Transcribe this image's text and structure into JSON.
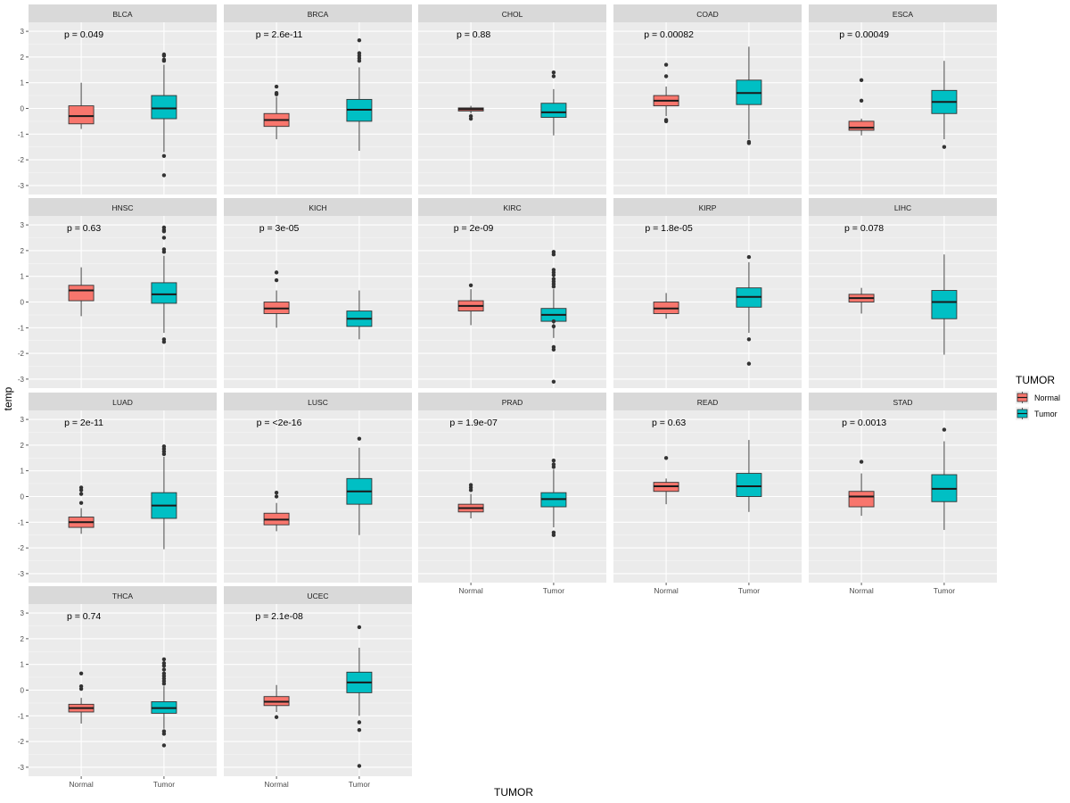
{
  "chart_data": {
    "type": "boxplot",
    "title": "",
    "xlabel": "TUMOR",
    "ylabel": "temp",
    "ylim": [
      -3.35,
      3.35
    ],
    "yticks": [
      -3,
      -2,
      -1,
      0,
      1,
      2,
      3
    ],
    "categories": [
      "Normal",
      "Tumor"
    ],
    "legend": {
      "title": "TUMOR",
      "position": "right",
      "items": [
        {
          "label": "Normal",
          "color": "#F8766D"
        },
        {
          "label": "Tumor",
          "color": "#00BFC4"
        }
      ]
    },
    "colors": {
      "Normal": "#F8766D",
      "Tumor": "#00BFC4",
      "panel": "#EBEBEB",
      "strip": "#D9D9D9"
    },
    "panels": [
      {
        "name": "BLCA",
        "p_label": "p = 0.049",
        "boxes": [
          {
            "group": "Normal",
            "q1": -0.6,
            "median": -0.3,
            "q3": 0.1,
            "whisker_low": -0.8,
            "whisker_high": 1.0,
            "outliers": []
          },
          {
            "group": "Tumor",
            "q1": -0.4,
            "median": 0.0,
            "q3": 0.5,
            "whisker_low": -1.7,
            "whisker_high": 1.7,
            "outliers": [
              1.85,
              1.9,
              2.05,
              2.1,
              -1.85,
              -2.6
            ]
          }
        ]
      },
      {
        "name": "BRCA",
        "p_label": "p = 2.6e-11",
        "boxes": [
          {
            "group": "Normal",
            "q1": -0.7,
            "median": -0.45,
            "q3": -0.2,
            "whisker_low": -1.2,
            "whisker_high": 0.45,
            "outliers": [
              0.55,
              0.6,
              0.85
            ]
          },
          {
            "group": "Tumor",
            "q1": -0.5,
            "median": -0.05,
            "q3": 0.35,
            "whisker_low": -1.65,
            "whisker_high": 1.6,
            "outliers": [
              1.85,
              1.95,
              2.05,
              2.15,
              2.65
            ]
          }
        ]
      },
      {
        "name": "CHOL",
        "p_label": "p = 0.88",
        "boxes": [
          {
            "group": "Normal",
            "q1": -0.1,
            "median": -0.03,
            "q3": 0.02,
            "whisker_low": -0.2,
            "whisker_high": 0.1,
            "outliers": [
              -0.3,
              -0.4
            ]
          },
          {
            "group": "Tumor",
            "q1": -0.35,
            "median": -0.15,
            "q3": 0.2,
            "whisker_low": -1.05,
            "whisker_high": 0.75,
            "outliers": [
              1.25,
              1.4
            ]
          }
        ]
      },
      {
        "name": "COAD",
        "p_label": "p = 0.00082",
        "boxes": [
          {
            "group": "Normal",
            "q1": 0.1,
            "median": 0.3,
            "q3": 0.5,
            "whisker_low": -0.3,
            "whisker_high": 0.85,
            "outliers": [
              1.25,
              1.7,
              -0.45,
              -0.5
            ]
          },
          {
            "group": "Tumor",
            "q1": 0.15,
            "median": 0.6,
            "q3": 1.1,
            "whisker_low": -1.2,
            "whisker_high": 2.4,
            "outliers": [
              -1.3,
              -1.35
            ]
          }
        ]
      },
      {
        "name": "ESCA",
        "p_label": "p = 0.00049",
        "boxes": [
          {
            "group": "Normal",
            "q1": -0.85,
            "median": -0.75,
            "q3": -0.5,
            "whisker_low": -1.05,
            "whisker_high": -0.4,
            "outliers": [
              0.3,
              1.1
            ]
          },
          {
            "group": "Tumor",
            "q1": -0.2,
            "median": 0.25,
            "q3": 0.7,
            "whisker_low": -1.2,
            "whisker_high": 1.85,
            "outliers": [
              -1.5
            ]
          }
        ]
      },
      {
        "name": "HNSC",
        "p_label": "p = 0.63",
        "boxes": [
          {
            "group": "Normal",
            "q1": 0.05,
            "median": 0.45,
            "q3": 0.65,
            "whisker_low": -0.55,
            "whisker_high": 1.35,
            "outliers": []
          },
          {
            "group": "Tumor",
            "q1": -0.05,
            "median": 0.3,
            "q3": 0.75,
            "whisker_low": -1.2,
            "whisker_high": 1.8,
            "outliers": [
              1.95,
              2.05,
              2.5,
              2.75,
              2.8,
              2.9,
              -1.45,
              -1.55
            ]
          }
        ]
      },
      {
        "name": "KICH",
        "p_label": "p = 3e-05",
        "boxes": [
          {
            "group": "Normal",
            "q1": -0.45,
            "median": -0.25,
            "q3": 0.0,
            "whisker_low": -1.0,
            "whisker_high": 0.45,
            "outliers": [
              0.85,
              1.15
            ]
          },
          {
            "group": "Tumor",
            "q1": -0.95,
            "median": -0.65,
            "q3": -0.35,
            "whisker_low": -1.45,
            "whisker_high": 0.45,
            "outliers": []
          }
        ]
      },
      {
        "name": "KIRC",
        "p_label": "p = 2e-09",
        "boxes": [
          {
            "group": "Normal",
            "q1": -0.35,
            "median": -0.15,
            "q3": 0.05,
            "whisker_low": -0.9,
            "whisker_high": 0.5,
            "outliers": [
              0.65
            ]
          },
          {
            "group": "Tumor",
            "q1": -0.75,
            "median": -0.5,
            "q3": -0.25,
            "whisker_low": -1.4,
            "whisker_high": 0.5,
            "outliers": [
              0.6,
              0.7,
              0.8,
              0.9,
              1.05,
              1.15,
              1.25,
              1.85,
              1.95,
              -0.75,
              -0.95,
              -1.75,
              -1.85,
              -3.1
            ]
          }
        ]
      },
      {
        "name": "KIRP",
        "p_label": "p = 1.8e-05",
        "boxes": [
          {
            "group": "Normal",
            "q1": -0.45,
            "median": -0.25,
            "q3": 0.0,
            "whisker_low": -0.65,
            "whisker_high": 0.35,
            "outliers": []
          },
          {
            "group": "Tumor",
            "q1": -0.2,
            "median": 0.2,
            "q3": 0.55,
            "whisker_low": -1.2,
            "whisker_high": 1.55,
            "outliers": [
              1.75,
              -1.45,
              -2.4
            ]
          }
        ]
      },
      {
        "name": "LIHC",
        "p_label": "p = 0.078",
        "boxes": [
          {
            "group": "Normal",
            "q1": 0.0,
            "median": 0.15,
            "q3": 0.3,
            "whisker_low": -0.45,
            "whisker_high": 0.55,
            "outliers": []
          },
          {
            "group": "Tumor",
            "q1": -0.65,
            "median": 0.0,
            "q3": 0.45,
            "whisker_low": -2.05,
            "whisker_high": 1.85,
            "outliers": []
          }
        ]
      },
      {
        "name": "LUAD",
        "p_label": "p = 2e-11",
        "boxes": [
          {
            "group": "Normal",
            "q1": -1.2,
            "median": -1.0,
            "q3": -0.8,
            "whisker_low": -1.45,
            "whisker_high": -0.45,
            "outliers": [
              -0.25,
              0.1,
              0.25,
              0.35
            ]
          },
          {
            "group": "Tumor",
            "q1": -0.85,
            "median": -0.35,
            "q3": 0.15,
            "whisker_low": -2.05,
            "whisker_high": 1.55,
            "outliers": [
              1.65,
              1.75,
              1.85,
              1.95
            ]
          }
        ]
      },
      {
        "name": "LUSC",
        "p_label": "p = <2e-16",
        "boxes": [
          {
            "group": "Normal",
            "q1": -1.1,
            "median": -0.9,
            "q3": -0.65,
            "whisker_low": -1.35,
            "whisker_high": -0.25,
            "outliers": [
              0.0,
              0.15
            ]
          },
          {
            "group": "Tumor",
            "q1": -0.3,
            "median": 0.2,
            "q3": 0.7,
            "whisker_low": -1.5,
            "whisker_high": 1.9,
            "outliers": [
              2.25
            ]
          }
        ]
      },
      {
        "name": "PRAD",
        "p_label": "p = 1.9e-07",
        "boxes": [
          {
            "group": "Normal",
            "q1": -0.6,
            "median": -0.45,
            "q3": -0.3,
            "whisker_low": -0.85,
            "whisker_high": 0.1,
            "outliers": [
              0.25,
              0.35,
              0.45
            ]
          },
          {
            "group": "Tumor",
            "q1": -0.4,
            "median": -0.1,
            "q3": 0.15,
            "whisker_low": -1.2,
            "whisker_high": 1.05,
            "outliers": [
              1.15,
              1.25,
              1.4,
              -1.4,
              -1.5
            ]
          }
        ]
      },
      {
        "name": "READ",
        "p_label": "p = 0.63",
        "boxes": [
          {
            "group": "Normal",
            "q1": 0.2,
            "median": 0.4,
            "q3": 0.55,
            "whisker_low": -0.3,
            "whisker_high": 0.7,
            "outliers": [
              1.5
            ]
          },
          {
            "group": "Tumor",
            "q1": 0.0,
            "median": 0.4,
            "q3": 0.9,
            "whisker_low": -0.6,
            "whisker_high": 2.2,
            "outliers": []
          }
        ]
      },
      {
        "name": "STAD",
        "p_label": "p = 0.0013",
        "boxes": [
          {
            "group": "Normal",
            "q1": -0.4,
            "median": 0.0,
            "q3": 0.2,
            "whisker_low": -0.75,
            "whisker_high": 0.9,
            "outliers": [
              1.35
            ]
          },
          {
            "group": "Tumor",
            "q1": -0.2,
            "median": 0.3,
            "q3": 0.85,
            "whisker_low": -1.3,
            "whisker_high": 2.15,
            "outliers": [
              2.6
            ]
          }
        ]
      },
      {
        "name": "THCA",
        "p_label": "p = 0.74",
        "boxes": [
          {
            "group": "Normal",
            "q1": -0.85,
            "median": -0.7,
            "q3": -0.55,
            "whisker_low": -1.3,
            "whisker_high": -0.3,
            "outliers": [
              0.05,
              0.15,
              0.65
            ]
          },
          {
            "group": "Tumor",
            "q1": -0.9,
            "median": -0.7,
            "q3": -0.45,
            "whisker_low": -1.5,
            "whisker_high": 0.15,
            "outliers": [
              0.25,
              0.35,
              0.45,
              0.55,
              0.65,
              0.8,
              0.95,
              1.05,
              1.2,
              -1.6,
              -1.7,
              -2.15
            ]
          }
        ]
      },
      {
        "name": "UCEC",
        "p_label": "p = 2.1e-08",
        "boxes": [
          {
            "group": "Normal",
            "q1": -0.6,
            "median": -0.45,
            "q3": -0.25,
            "whisker_low": -0.85,
            "whisker_high": 0.2,
            "outliers": [
              -1.05
            ]
          },
          {
            "group": "Tumor",
            "q1": -0.1,
            "median": 0.3,
            "q3": 0.7,
            "whisker_low": -1.0,
            "whisker_high": 1.65,
            "outliers": [
              2.45,
              -1.25,
              -1.55,
              -2.95
            ]
          }
        ]
      }
    ]
  }
}
